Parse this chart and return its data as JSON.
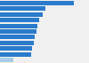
{
  "values": [
    5.4,
    3.3,
    3.1,
    2.85,
    2.75,
    2.65,
    2.55,
    2.45,
    2.35,
    2.25,
    1.0
  ],
  "bar_colors": [
    "#2b7bcc",
    "#2b7bcc",
    "#2b7bcc",
    "#2b7bcc",
    "#2b7bcc",
    "#2b7bcc",
    "#2b7bcc",
    "#2b7bcc",
    "#2b7bcc",
    "#2b7bcc",
    "#a8cce8"
  ],
  "background_color": "#f0f0f0",
  "xlim": [
    0,
    6.5
  ],
  "bar_height": 0.78,
  "n_bars": 11,
  "figsize": [
    1.0,
    0.71
  ],
  "dpi": 100
}
